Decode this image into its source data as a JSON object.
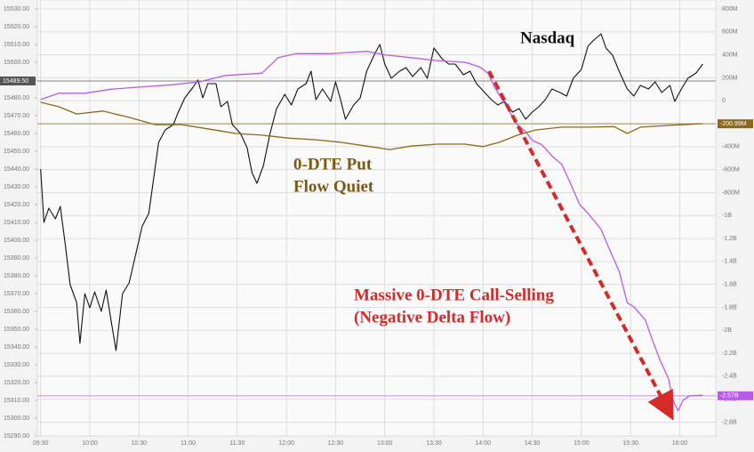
{
  "chart_data": {
    "type": "line",
    "xlim": [
      568,
      982
    ],
    "xticks": [
      {
        "value": 570,
        "label": "09:30"
      },
      {
        "value": 600,
        "label": "10:00"
      },
      {
        "value": 630,
        "label": "10:30"
      },
      {
        "value": 660,
        "label": "11:00"
      },
      {
        "value": 690,
        "label": "11:30"
      },
      {
        "value": 720,
        "label": "12:00"
      },
      {
        "value": 750,
        "label": "12:30"
      },
      {
        "value": 780,
        "label": "13:00"
      },
      {
        "value": 810,
        "label": "13:30"
      },
      {
        "value": 840,
        "label": "14:00"
      },
      {
        "value": 870,
        "label": "14:30"
      },
      {
        "value": 900,
        "label": "15:00"
      },
      {
        "value": 930,
        "label": "15:30"
      },
      {
        "value": 960,
        "label": "16:00"
      }
    ],
    "ylim": [
      15290,
      15530
    ],
    "yticks": [
      {
        "value": 15530,
        "label": "15530.00"
      },
      {
        "value": 15520,
        "label": "15520.00"
      },
      {
        "value": 15510,
        "label": "15510.00"
      },
      {
        "value": 15500,
        "label": "15500.00"
      },
      {
        "value": 15490,
        "label": "15490.00"
      },
      {
        "value": 15480,
        "label": "15480.00"
      },
      {
        "value": 15470,
        "label": "15470.00"
      },
      {
        "value": 15460,
        "label": "15460.00"
      },
      {
        "value": 15450,
        "label": "15450.00"
      },
      {
        "value": 15440,
        "label": "15440.00"
      },
      {
        "value": 15430,
        "label": "15430.00"
      },
      {
        "value": 15420,
        "label": "15420.00"
      },
      {
        "value": 15410,
        "label": "15410.00"
      },
      {
        "value": 15400,
        "label": "15400.00"
      },
      {
        "value": 15390,
        "label": "15390.00"
      },
      {
        "value": 15380,
        "label": "15380.00"
      },
      {
        "value": 15370,
        "label": "15370.00"
      },
      {
        "value": 15360,
        "label": "15360.00"
      },
      {
        "value": 15350,
        "label": "15350.00"
      },
      {
        "value": 15340,
        "label": "15340.00"
      },
      {
        "value": 15330,
        "label": "15330.00"
      },
      {
        "value": 15320,
        "label": "15320.00"
      },
      {
        "value": 15310,
        "label": "15310.00"
      },
      {
        "value": 15300,
        "label": "15300.00"
      },
      {
        "value": 15290,
        "label": "15290.00"
      }
    ],
    "y2lim": [
      -2920,
      800
    ],
    "y2ticks": [
      {
        "value": 800,
        "label": "800M"
      },
      {
        "value": 600,
        "label": "600M"
      },
      {
        "value": 400,
        "label": "400M"
      },
      {
        "value": 200,
        "label": "200M"
      },
      0,
      {
        "value": -200,
        "label": "-200M"
      },
      {
        "value": -400,
        "label": "-400M"
      },
      {
        "value": -600,
        "label": "-600M"
      },
      {
        "value": -800,
        "label": "-800M"
      },
      {
        "value": -1000,
        "label": "-1B"
      },
      {
        "value": -1200,
        "label": "-1.2B"
      },
      {
        "value": -1400,
        "label": "-1.4B"
      },
      {
        "value": -1600,
        "label": "-1.6B"
      },
      {
        "value": -1800,
        "label": "-1.8B"
      },
      {
        "value": -2000,
        "label": "-2B"
      },
      {
        "value": -2200,
        "label": "-2.2B"
      },
      {
        "value": -2400,
        "label": "-2.4B"
      },
      {
        "value": -2600,
        "label": "-2.6B"
      },
      {
        "value": -2800,
        "label": "-2.8B"
      }
    ],
    "grid": true,
    "series": [
      {
        "name": "Nasdaq",
        "color": "#111111",
        "axis": "y",
        "x": [
          570,
          572,
          575,
          579,
          582,
          585,
          588,
          592,
          594,
          597,
          600,
          603,
          607,
          610,
          613,
          616,
          620,
          624,
          628,
          632,
          636,
          639,
          642,
          646,
          651,
          654,
          658,
          663,
          666,
          669,
          672,
          677,
          680,
          684,
          687,
          692,
          696,
          699,
          702,
          706,
          710,
          714,
          719,
          723,
          727,
          732,
          735,
          738,
          742,
          747,
          750,
          753,
          756,
          761,
          765,
          769,
          774,
          777,
          780,
          784,
          789,
          793,
          797,
          802,
          806,
          810,
          815,
          819,
          823,
          828,
          832,
          836,
          840,
          845,
          849,
          853,
          858,
          862,
          866,
          870,
          874,
          878,
          882,
          887,
          891,
          895,
          900,
          904,
          907,
          912,
          915,
          919,
          923,
          928,
          932,
          936,
          941,
          945,
          949,
          954,
          957,
          961,
          965,
          970,
          974
        ],
        "values": [
          15440,
          15410,
          15418,
          15412,
          15419,
          15398,
          15375,
          15365,
          15342,
          15370,
          15362,
          15371,
          15360,
          15372,
          15355,
          15338,
          15370,
          15376,
          15392,
          15408,
          15415,
          15435,
          15455,
          15462,
          15465,
          15472,
          15480,
          15486,
          15490,
          15480,
          15488,
          15488,
          15475,
          15478,
          15465,
          15460,
          15452,
          15438,
          15432,
          15442,
          15460,
          15474,
          15482,
          15476,
          15485,
          15488,
          15495,
          15479,
          15485,
          15478,
          15489,
          15479,
          15468,
          15476,
          15480,
          15495,
          15505,
          15510,
          15499,
          15491,
          15495,
          15497,
          15492,
          15497,
          15491,
          15508,
          15502,
          15499,
          15499,
          15493,
          15495,
          15488,
          15484,
          15479,
          15476,
          15478,
          15472,
          15474,
          15468,
          15472,
          15475,
          15479,
          15485,
          15483,
          15481,
          15491,
          15496,
          15509,
          15512,
          15516,
          15508,
          15504,
          15495,
          15485,
          15481,
          15487,
          15485,
          15489,
          15483,
          15487,
          15478,
          15485,
          15491,
          15494,
          15499
        ]
      },
      {
        "color": "#b85ce8",
        "axis": "y2",
        "x": [
          570,
          581,
          597,
          613,
          629,
          651,
          667,
          683,
          705,
          715,
          726,
          747,
          769,
          780,
          796,
          812,
          829,
          838,
          843,
          847,
          851,
          856,
          861,
          866,
          870,
          876,
          882,
          888,
          893,
          899,
          904,
          912,
          917,
          923,
          928,
          932,
          939,
          943,
          948,
          953,
          956,
          959,
          962,
          966,
          974
        ],
        "values": [
          10,
          65,
          65,
          100,
          118,
          140,
          165,
          220,
          240,
          375,
          410,
          410,
          430,
          400,
          375,
          350,
          335,
          295,
          240,
          118,
          25,
          -90,
          -210,
          -270,
          -345,
          -385,
          -480,
          -555,
          -710,
          -905,
          -980,
          -1120,
          -1290,
          -1485,
          -1760,
          -1795,
          -1910,
          -2070,
          -2260,
          -2415,
          -2610,
          -2700,
          -2610,
          -2570,
          -2565
        ]
      },
      {
        "color": "#8a6a1a",
        "axis": "y2",
        "x": [
          570,
          581,
          592,
          608,
          624,
          640,
          656,
          672,
          689,
          705,
          721,
          738,
          753,
          769,
          783,
          796,
          812,
          829,
          840,
          850,
          861,
          872,
          888,
          904,
          920,
          928,
          936,
          953,
          974
        ],
        "values": [
          -14,
          -52,
          -115,
          -90,
          -145,
          -208,
          -208,
          -245,
          -285,
          -300,
          -325,
          -340,
          -362,
          -395,
          -425,
          -395,
          -378,
          -378,
          -400,
          -362,
          -300,
          -255,
          -230,
          -230,
          -225,
          -285,
          -230,
          -215,
          -200
        ]
      }
    ],
    "markers": [
      {
        "axis": "y",
        "value": 15489.5,
        "label": "15489.50",
        "color": "#555555"
      },
      {
        "axis": "y2",
        "value": -200.99,
        "label": "-200.99M",
        "color": "#8a6a1a"
      },
      {
        "axis": "y2",
        "value": -2570,
        "label": "-2.57B",
        "color": "#b85ce8"
      }
    ],
    "annotations": [
      {
        "lines": [
          "0-DTE Put",
          "Flow Quiet"
        ],
        "color": "#7a5a14"
      },
      {
        "lines": [
          "Massive 0-DTE Call-Selling",
          "(Negative Delta Flow)"
        ],
        "color": "#d42a2a"
      }
    ]
  }
}
